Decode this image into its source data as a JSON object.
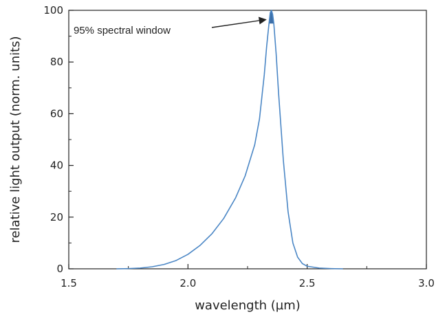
{
  "chart_data": {
    "type": "line",
    "xlabel": "wavelength (µm)",
    "ylabel": "relative light output (norm. units)",
    "xlim": [
      1.5,
      3.0
    ],
    "ylim": [
      0,
      100
    ],
    "x_ticks": [
      {
        "value": 1.5,
        "label": "1.5"
      },
      {
        "value": 2.0,
        "label": "2.0"
      },
      {
        "value": 2.5,
        "label": "2.5"
      },
      {
        "value": 3.0,
        "label": "3.0"
      }
    ],
    "y_ticks": [
      {
        "value": 0,
        "label": "0"
      },
      {
        "value": 20,
        "label": "20"
      },
      {
        "value": 40,
        "label": "40"
      },
      {
        "value": 60,
        "label": "60"
      },
      {
        "value": 80,
        "label": "80"
      },
      {
        "value": 100,
        "label": "100"
      }
    ],
    "grid": false,
    "series": [
      {
        "color": "#4a86c5",
        "points": [
          [
            1.7,
            0.0
          ],
          [
            1.75,
            0.1
          ],
          [
            1.8,
            0.3
          ],
          [
            1.85,
            0.8
          ],
          [
            1.9,
            1.7
          ],
          [
            1.95,
            3.2
          ],
          [
            2.0,
            5.6
          ],
          [
            2.05,
            9.0
          ],
          [
            2.1,
            13.5
          ],
          [
            2.15,
            19.5
          ],
          [
            2.2,
            27.5
          ],
          [
            2.24,
            36.0
          ],
          [
            2.28,
            48.0
          ],
          [
            2.3,
            58.0
          ],
          [
            2.32,
            75.0
          ],
          [
            2.33,
            86.0
          ],
          [
            2.34,
            95.0
          ],
          [
            2.345,
            99.0
          ],
          [
            2.35,
            100.0
          ],
          [
            2.355,
            98.5
          ],
          [
            2.36,
            95.0
          ],
          [
            2.37,
            83.0
          ],
          [
            2.38,
            68.0
          ],
          [
            2.4,
            42.0
          ],
          [
            2.42,
            22.0
          ],
          [
            2.44,
            10.0
          ],
          [
            2.46,
            4.5
          ],
          [
            2.48,
            2.0
          ],
          [
            2.5,
            1.0
          ],
          [
            2.55,
            0.3
          ],
          [
            2.6,
            0.1
          ],
          [
            2.65,
            0.0
          ]
        ]
      }
    ],
    "highlight": {
      "color": "#3d6fa8",
      "threshold": 95,
      "x_range": [
        2.34,
        2.36
      ]
    },
    "annotations": [
      {
        "text": "95% spectral window",
        "arrow_to": [
          2.35,
          98
        ]
      }
    ]
  }
}
